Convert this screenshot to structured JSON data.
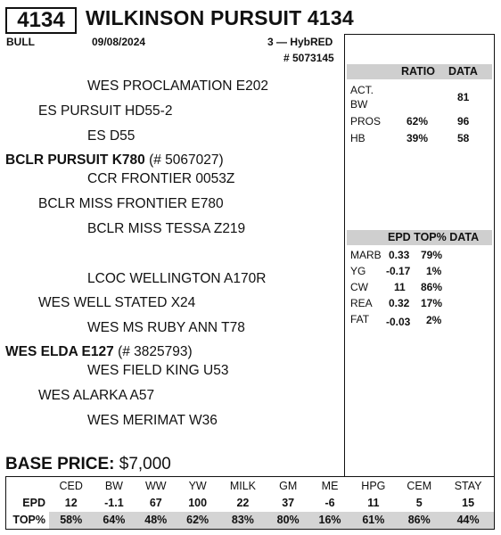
{
  "lot": "4134",
  "name": "WILKINSON PURSUIT 4134",
  "sex": "BULL",
  "birth_date": "09/08/2024",
  "category": "3 — HybRED",
  "reg_number": "# 5073145",
  "pedigree": {
    "sss": "WES PROCLAMATION E202",
    "ss": "ES PURSUIT HD55-2",
    "ssd": "ES D55",
    "sire": "BCLR PURSUIT K780",
    "sire_reg": "(# 5067027)",
    "sds": "CCR FRONTIER 0053Z",
    "sd": "BCLR MISS FRONTIER E780",
    "sdd": "BCLR MISS TESSA Z219",
    "dss": "LCOC WELLINGTON A170R",
    "ds": "WES WELL STATED X24",
    "dsd": "WES MS RUBY ANN T78",
    "dam": "WES ELDA E127",
    "dam_reg": "(# 3825793)",
    "dds": "WES FIELD KING U53",
    "dd": "WES ALARKA A57",
    "ddd": "WES MERIMAT W36"
  },
  "ratio_table": {
    "header_ratio": "RATIO",
    "header_data": "DATA",
    "act_label": "ACT.",
    "bw_label": "BW",
    "act_bw_data": "81",
    "pros_label": "PROS",
    "pros_ratio": "62%",
    "pros_data": "96",
    "hb_label": "HB",
    "hb_ratio": "39%",
    "hb_data": "58"
  },
  "carcass_table": {
    "header": "EPD TOP% DATA",
    "rows": [
      {
        "label": "MARB",
        "epd": "0.33",
        "top": "79%"
      },
      {
        "label": "YG",
        "epd": "-0.17",
        "top": "1%"
      },
      {
        "label": "CW",
        "epd": "11",
        "top": "86%"
      },
      {
        "label": "REA",
        "epd": "0.32",
        "top": "17%"
      },
      {
        "label": "FAT",
        "epd": "-0.03",
        "top": "2%"
      }
    ]
  },
  "base_price_label": "BASE PRICE:",
  "base_price_value": "$7,000",
  "epd_table": {
    "row_epd_label": "EPD",
    "row_top_label": "TOP%",
    "columns": [
      "CED",
      "BW",
      "WW",
      "YW",
      "MILK",
      "GM",
      "ME",
      "HPG",
      "CEM",
      "STAY"
    ],
    "epd": [
      "12",
      "-1.1",
      "67",
      "100",
      "22",
      "37",
      "-6",
      "11",
      "5",
      "15"
    ],
    "top": [
      "58%",
      "64%",
      "48%",
      "62%",
      "83%",
      "80%",
      "16%",
      "61%",
      "86%",
      "44%"
    ]
  }
}
